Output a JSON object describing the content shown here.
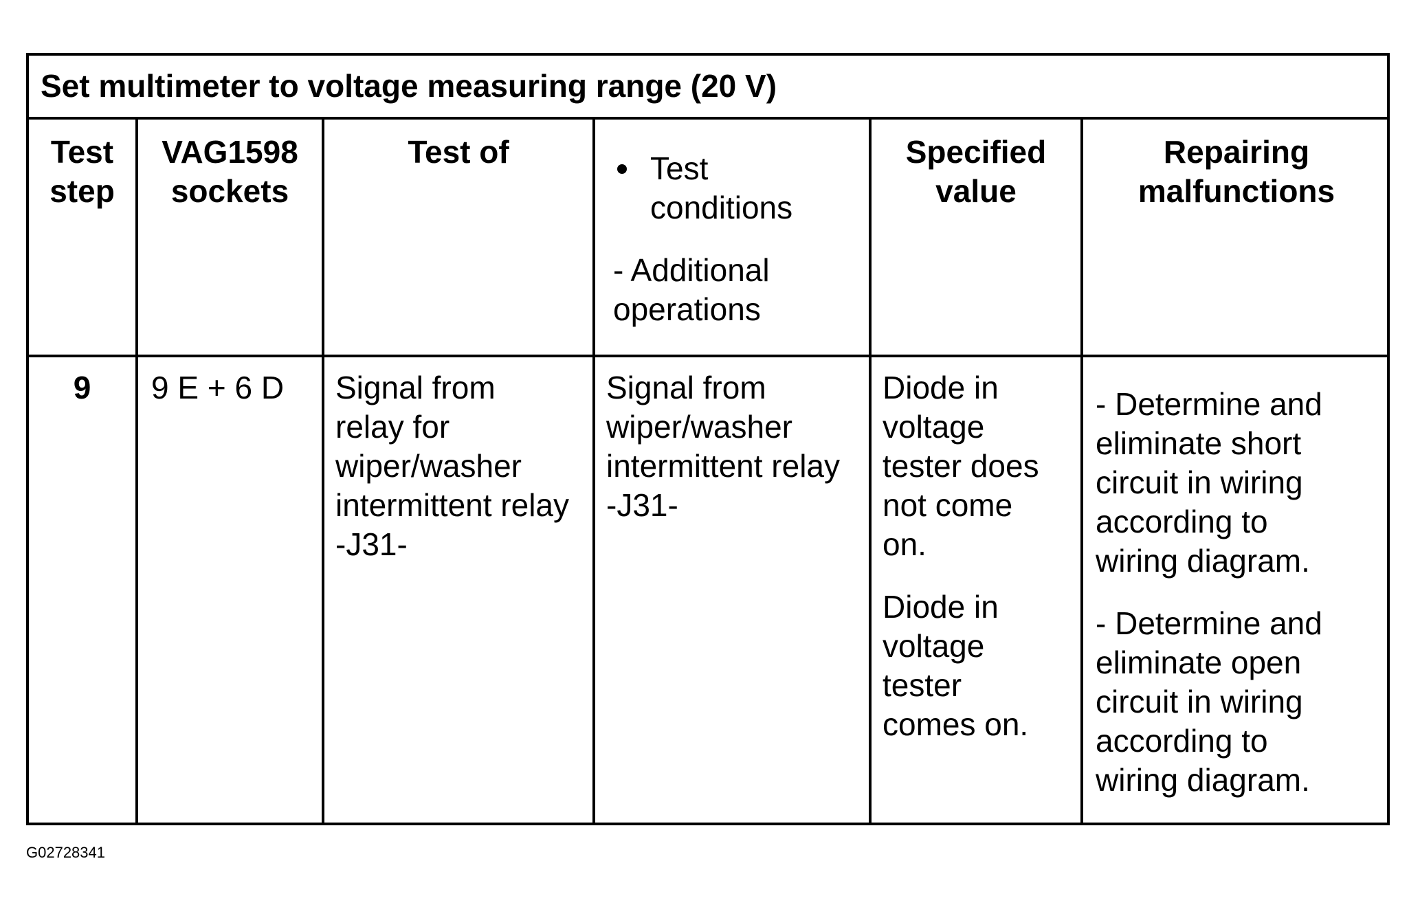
{
  "table": {
    "title": "Set multimeter to voltage measuring range (20 V)",
    "headers": {
      "test_step": [
        "Test",
        "step"
      ],
      "sockets": [
        "VAG1598",
        "sockets"
      ],
      "test_of": "Test of",
      "conditions_bullet": [
        "Test",
        "conditions"
      ],
      "conditions_additional": [
        "- Additional",
        "operations"
      ],
      "specified_value": [
        "Specified",
        "value"
      ],
      "repairing": [
        "Repairing",
        "malfunctions"
      ]
    },
    "row": {
      "test_step": "9",
      "sockets": "9 E + 6 D",
      "test_of": [
        "Signal from",
        "relay for",
        "wiper/washer",
        "intermittent relay",
        "-J31-"
      ],
      "conditions": [
        "Signal from",
        "wiper/washer",
        "intermittent relay",
        "-J31-"
      ],
      "specified_value_1": [
        "Diode in",
        "voltage",
        "tester does",
        "not come",
        "on."
      ],
      "specified_value_2": [
        "Diode in",
        "voltage",
        "tester",
        "comes on."
      ],
      "repair_1": [
        "- Determine and",
        "eliminate short",
        "circuit in wiring",
        "according to",
        "wiring diagram."
      ],
      "repair_2": [
        "- Determine and",
        "eliminate open",
        "circuit in wiring",
        "according to",
        "wiring diagram."
      ]
    }
  },
  "figure_id": "G02728341"
}
